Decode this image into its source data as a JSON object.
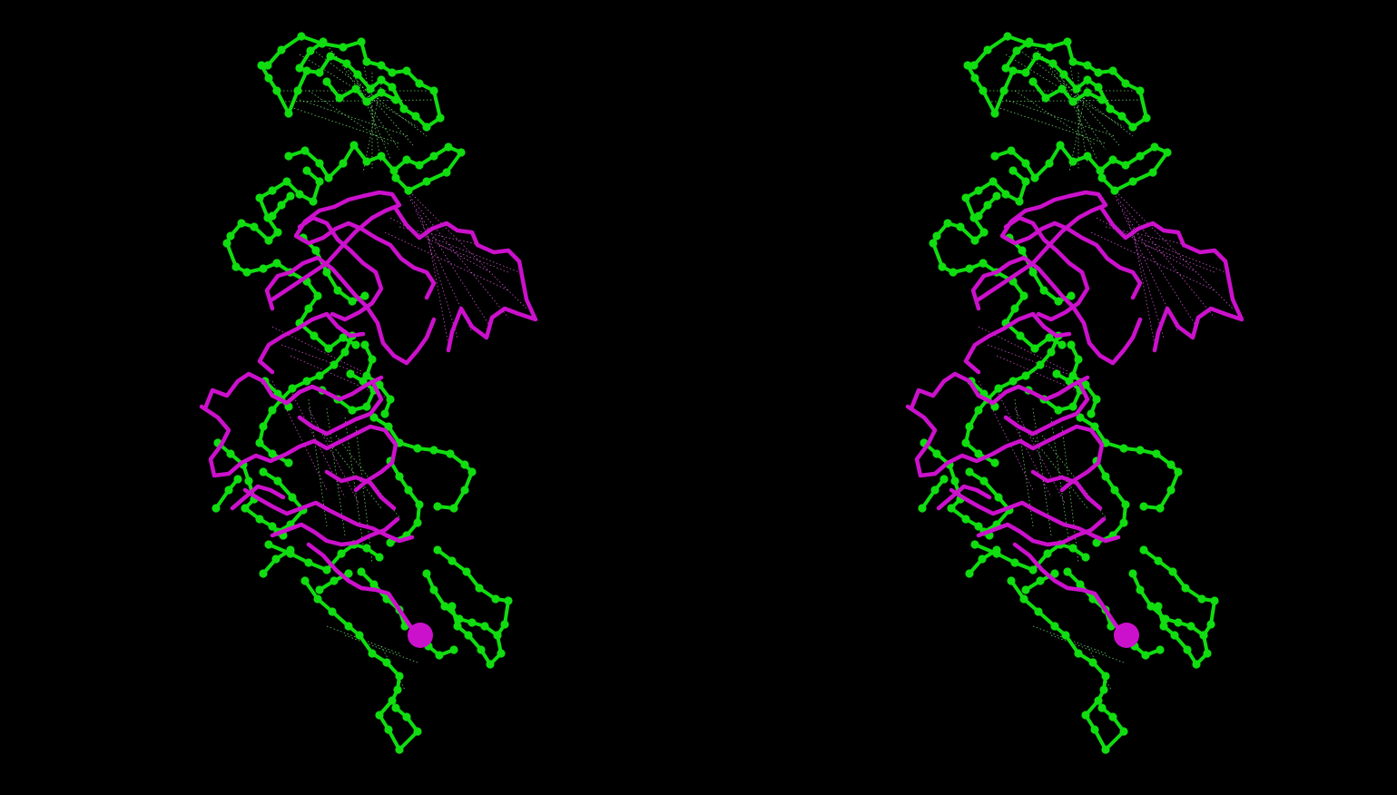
{
  "scene": {
    "kind": "stereo-pair",
    "background_color": "#000000",
    "colors": {
      "chain_a": "#11dd11",
      "chain_b": "#cc11cc",
      "contact_a": "#88ff88",
      "contact_b": "#ff66ff"
    },
    "panels": [
      {
        "name": "left-eye-view"
      },
      {
        "name": "right-eye-view"
      }
    ]
  }
}
